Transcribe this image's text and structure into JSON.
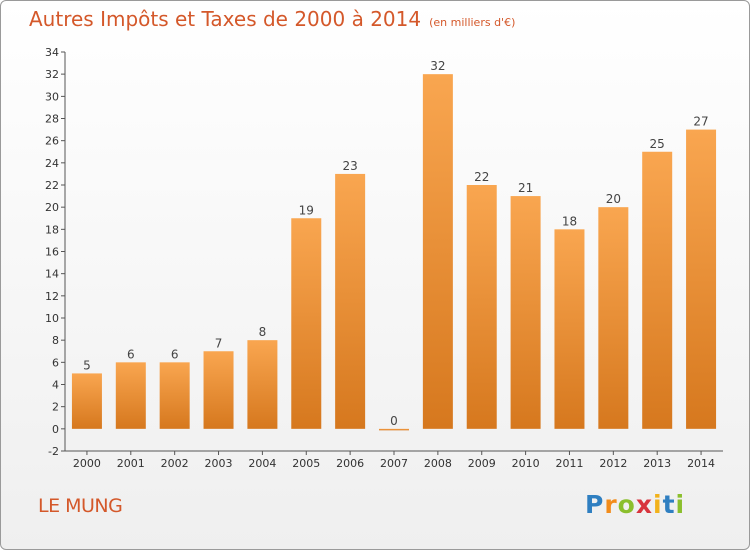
{
  "title": "Autres Impôts et Taxes de 2000 à 2014",
  "subtitle": "(en milliers d'€)",
  "commune": "LE MUNG",
  "logo": {
    "letters": [
      "P",
      "r",
      "o",
      "x",
      "i",
      "t",
      "i"
    ],
    "colors": [
      "#2f7fc1",
      "#f28c1b",
      "#8bbf2d",
      "#d8343d",
      "#f2b21b",
      "#2f7fc1",
      "#8bbf2d"
    ]
  },
  "colors": {
    "bar_light": "#f9a650",
    "bar_dark": "#d6781e",
    "title": "#d4582a",
    "axis": "#555555"
  },
  "chart_data": {
    "type": "bar",
    "categories": [
      "2000",
      "2001",
      "2002",
      "2003",
      "2004",
      "2005",
      "2006",
      "2007",
      "2008",
      "2009",
      "2010",
      "2011",
      "2012",
      "2013",
      "2014"
    ],
    "values": [
      5,
      6,
      6,
      7,
      8,
      19,
      23,
      0,
      32,
      22,
      21,
      18,
      20,
      25,
      27
    ],
    "ylim": [
      -2,
      34
    ],
    "yticks": [
      -2,
      0,
      2,
      4,
      6,
      8,
      10,
      12,
      14,
      16,
      18,
      20,
      22,
      24,
      26,
      28,
      30,
      32,
      34
    ],
    "grid": false,
    "xlabel": "",
    "ylabel": ""
  }
}
